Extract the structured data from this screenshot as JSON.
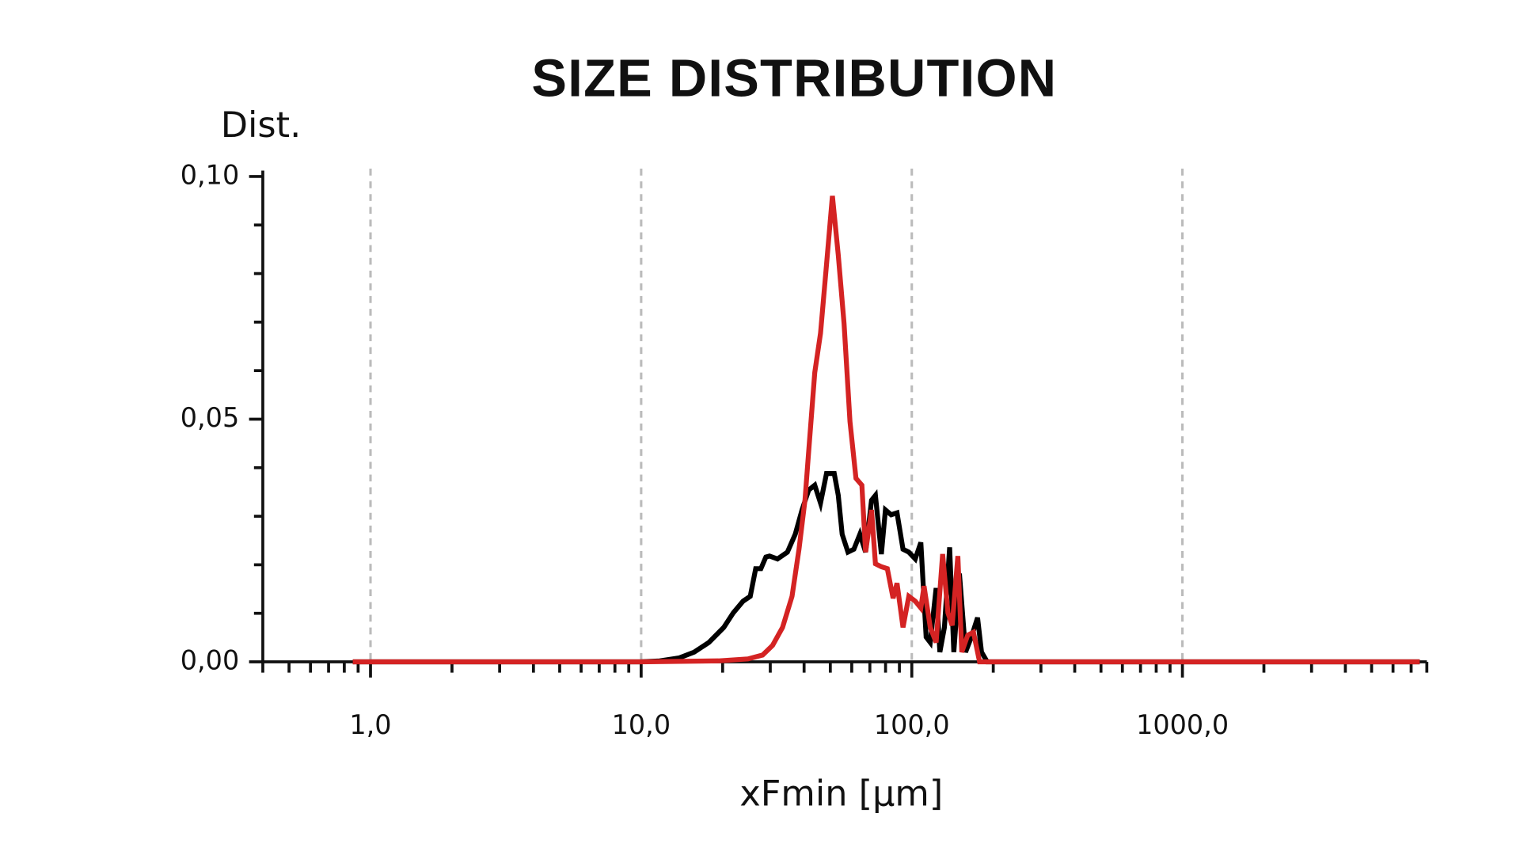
{
  "chart_data": {
    "type": "line",
    "title": "SIZE DISTRIBUTION",
    "y_label": "Dist.",
    "x_label": "xFmin [µm]",
    "x_scale": "log",
    "xlim": [
      0.4,
      8000
    ],
    "xticks": [
      {
        "value": 1,
        "label": "1,0"
      },
      {
        "value": 10,
        "label": "10,0"
      },
      {
        "value": 100,
        "label": "100,0"
      },
      {
        "value": 1000,
        "label": "1000,0"
      }
    ],
    "xminorticks": [
      0.4,
      0.5,
      0.6,
      0.7,
      0.8,
      0.9,
      2,
      3,
      4,
      5,
      6,
      7,
      8,
      9,
      20,
      30,
      40,
      50,
      60,
      70,
      80,
      90,
      200,
      300,
      400,
      500,
      600,
      700,
      800,
      900,
      2000,
      3000,
      4000,
      5000,
      6000,
      7000,
      8000
    ],
    "ylim": [
      0,
      0.1
    ],
    "yticks": [
      {
        "value": 0,
        "label": "0,00"
      },
      {
        "value": 0.05,
        "label": "0,05"
      },
      {
        "value": 0.1,
        "label": "0,10"
      }
    ],
    "yminorticks": [
      0.01,
      0.02,
      0.03,
      0.04,
      0.06,
      0.07,
      0.08,
      0.09
    ],
    "grid": "x-major-dashed",
    "series": [
      {
        "color": "#000000",
        "x": [
          0.86,
          9.92,
          11.7,
          13.8,
          15.7,
          17.8,
          20.2,
          21.9,
          23.8,
          25.3,
          26.5,
          27.7,
          28.9,
          29.8,
          31.9,
          34.7,
          37.1,
          39.3,
          41.6,
          43.8,
          46.0,
          48.4,
          51.7,
          53.5,
          55.3,
          58.1,
          61.1,
          64.3,
          67.5,
          71.0,
          73.4,
          77.2,
          79.9,
          83.9,
          88.2,
          92.8,
          97.5,
          103,
          108,
          113,
          117,
          123,
          127,
          132,
          138,
          143,
          150,
          158,
          166,
          175,
          181,
          190,
          7530
        ],
        "values": [
          0,
          0,
          0.0002,
          0.0008,
          0.002,
          0.004,
          0.0071,
          0.0101,
          0.0125,
          0.0135,
          0.0192,
          0.0192,
          0.0216,
          0.0218,
          0.0212,
          0.0226,
          0.0263,
          0.0313,
          0.0354,
          0.0364,
          0.0327,
          0.0388,
          0.0388,
          0.0343,
          0.0263,
          0.0226,
          0.0232,
          0.0263,
          0.0226,
          0.0333,
          0.0343,
          0.0222,
          0.0313,
          0.0303,
          0.0307,
          0.0232,
          0.0226,
          0.0212,
          0.0246,
          0.0051,
          0.004,
          0.0152,
          0.002,
          0.0071,
          0.0236,
          0.002,
          0.0182,
          0.002,
          0.0051,
          0.0091,
          0.002,
          0,
          0
        ]
      },
      {
        "color": "#d42323",
        "x": [
          0.86,
          9.92,
          19.3,
          24.8,
          28.1,
          30.6,
          33.3,
          36.1,
          38.3,
          40.3,
          41.6,
          43.8,
          46.0,
          48.4,
          50.9,
          53.5,
          56.2,
          59.1,
          62.2,
          65.4,
          67.5,
          71.0,
          73.4,
          77.2,
          81.2,
          85.3,
          88.2,
          92.8,
          97.5,
          103,
          108,
          111,
          117,
          123,
          130,
          136,
          141,
          148,
          153,
          161,
          169,
          178,
          7530
        ],
        "values": [
          0,
          0,
          0.0002,
          0.0006,
          0.0014,
          0.0034,
          0.0071,
          0.0135,
          0.0232,
          0.0333,
          0.0434,
          0.0596,
          0.0677,
          0.0818,
          0.096,
          0.0838,
          0.0697,
          0.0495,
          0.0378,
          0.0364,
          0.0226,
          0.0313,
          0.0202,
          0.0196,
          0.0192,
          0.0131,
          0.0162,
          0.0071,
          0.0135,
          0.0125,
          0.0111,
          0.0156,
          0.0071,
          0.004,
          0.0222,
          0.0101,
          0.0075,
          0.0218,
          0.002,
          0.0055,
          0.0061,
          0,
          0
        ]
      }
    ]
  }
}
